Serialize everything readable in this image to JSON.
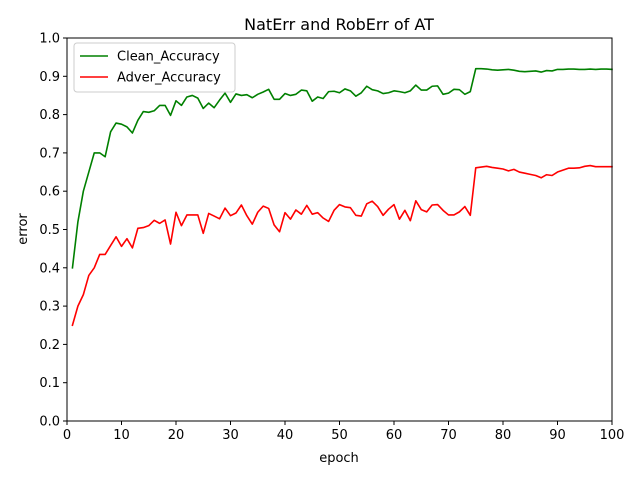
{
  "chart_data": {
    "type": "line",
    "title": "NatErr and RobErr of AT",
    "xlabel": "epoch",
    "ylabel": "error",
    "xlim": [
      0,
      100
    ],
    "ylim": [
      0,
      1.0
    ],
    "x_ticks": [
      "0",
      "10",
      "20",
      "30",
      "40",
      "50",
      "60",
      "70",
      "80",
      "90",
      "100"
    ],
    "y_ticks": [
      "0.0",
      "0.1",
      "0.2",
      "0.3",
      "0.4",
      "0.5",
      "0.6",
      "0.7",
      "0.8",
      "0.9",
      "1.0"
    ],
    "grid": false,
    "legend_position": "upper-left",
    "series": [
      {
        "name": "Clean_Accuracy",
        "color": "#008000",
        "x": [
          1,
          2,
          3,
          4,
          5,
          6,
          7,
          8,
          9,
          10,
          11,
          12,
          13,
          14,
          15,
          16,
          17,
          18,
          19,
          20,
          21,
          22,
          23,
          24,
          25,
          26,
          27,
          28,
          29,
          30,
          31,
          32,
          33,
          34,
          35,
          36,
          37,
          38,
          39,
          40,
          41,
          42,
          43,
          44,
          45,
          46,
          47,
          48,
          49,
          50,
          51,
          52,
          53,
          54,
          55,
          56,
          57,
          58,
          59,
          60,
          61,
          62,
          63,
          64,
          65,
          66,
          67,
          68,
          69,
          70,
          71,
          72,
          73,
          74,
          75,
          76,
          77,
          78,
          79,
          80,
          81,
          82,
          83,
          84,
          85,
          86,
          87,
          88,
          89,
          90,
          91,
          92,
          93,
          94,
          95,
          96,
          97,
          98,
          99,
          100
        ],
        "values": [
          0.4,
          0.52,
          0.6,
          0.65,
          0.7,
          0.7,
          0.69,
          0.755,
          0.778,
          0.775,
          0.768,
          0.752,
          0.785,
          0.808,
          0.806,
          0.81,
          0.824,
          0.824,
          0.798,
          0.836,
          0.824,
          0.846,
          0.85,
          0.843,
          0.816,
          0.83,
          0.818,
          0.838,
          0.856,
          0.832,
          0.854,
          0.85,
          0.852,
          0.844,
          0.853,
          0.859,
          0.866,
          0.84,
          0.84,
          0.855,
          0.85,
          0.853,
          0.864,
          0.862,
          0.835,
          0.846,
          0.842,
          0.86,
          0.861,
          0.857,
          0.867,
          0.862,
          0.848,
          0.857,
          0.874,
          0.865,
          0.862,
          0.855,
          0.857,
          0.862,
          0.86,
          0.857,
          0.862,
          0.877,
          0.864,
          0.864,
          0.874,
          0.875,
          0.853,
          0.856,
          0.866,
          0.865,
          0.853,
          0.86,
          0.92,
          0.92,
          0.919,
          0.917,
          0.916,
          0.917,
          0.918,
          0.916,
          0.913,
          0.912,
          0.913,
          0.914,
          0.911,
          0.915,
          0.914,
          0.918,
          0.918,
          0.919,
          0.919,
          0.918,
          0.918,
          0.919,
          0.918,
          0.919,
          0.919,
          0.918
        ]
      },
      {
        "name": "Adver_Accuracy",
        "color": "#ff0000",
        "x": [
          1,
          2,
          3,
          4,
          5,
          6,
          7,
          8,
          9,
          10,
          11,
          12,
          13,
          14,
          15,
          16,
          17,
          18,
          19,
          20,
          21,
          22,
          23,
          24,
          25,
          26,
          27,
          28,
          29,
          30,
          31,
          32,
          33,
          34,
          35,
          36,
          37,
          38,
          39,
          40,
          41,
          42,
          43,
          44,
          45,
          46,
          47,
          48,
          49,
          50,
          51,
          52,
          53,
          54,
          55,
          56,
          57,
          58,
          59,
          60,
          61,
          62,
          63,
          64,
          65,
          66,
          67,
          68,
          69,
          70,
          71,
          72,
          73,
          74,
          75,
          76,
          77,
          78,
          79,
          80,
          81,
          82,
          83,
          84,
          85,
          86,
          87,
          88,
          89,
          90,
          91,
          92,
          93,
          94,
          95,
          96,
          97,
          98,
          99,
          100
        ],
        "values": [
          0.25,
          0.3,
          0.33,
          0.38,
          0.4,
          0.435,
          0.435,
          0.458,
          0.481,
          0.456,
          0.476,
          0.452,
          0.503,
          0.505,
          0.51,
          0.524,
          0.516,
          0.525,
          0.462,
          0.545,
          0.51,
          0.538,
          0.538,
          0.538,
          0.49,
          0.542,
          0.535,
          0.528,
          0.556,
          0.536,
          0.543,
          0.564,
          0.536,
          0.514,
          0.545,
          0.561,
          0.555,
          0.512,
          0.494,
          0.544,
          0.527,
          0.551,
          0.54,
          0.563,
          0.54,
          0.544,
          0.53,
          0.521,
          0.55,
          0.565,
          0.559,
          0.557,
          0.537,
          0.535,
          0.567,
          0.574,
          0.56,
          0.537,
          0.553,
          0.565,
          0.527,
          0.55,
          0.523,
          0.575,
          0.552,
          0.546,
          0.564,
          0.565,
          0.55,
          0.538,
          0.538,
          0.546,
          0.56,
          0.537,
          0.661,
          0.663,
          0.665,
          0.662,
          0.66,
          0.658,
          0.653,
          0.657,
          0.65,
          0.647,
          0.644,
          0.641,
          0.635,
          0.643,
          0.641,
          0.65,
          0.655,
          0.66,
          0.66,
          0.661,
          0.665,
          0.667,
          0.664,
          0.664,
          0.664,
          0.664
        ]
      }
    ]
  }
}
